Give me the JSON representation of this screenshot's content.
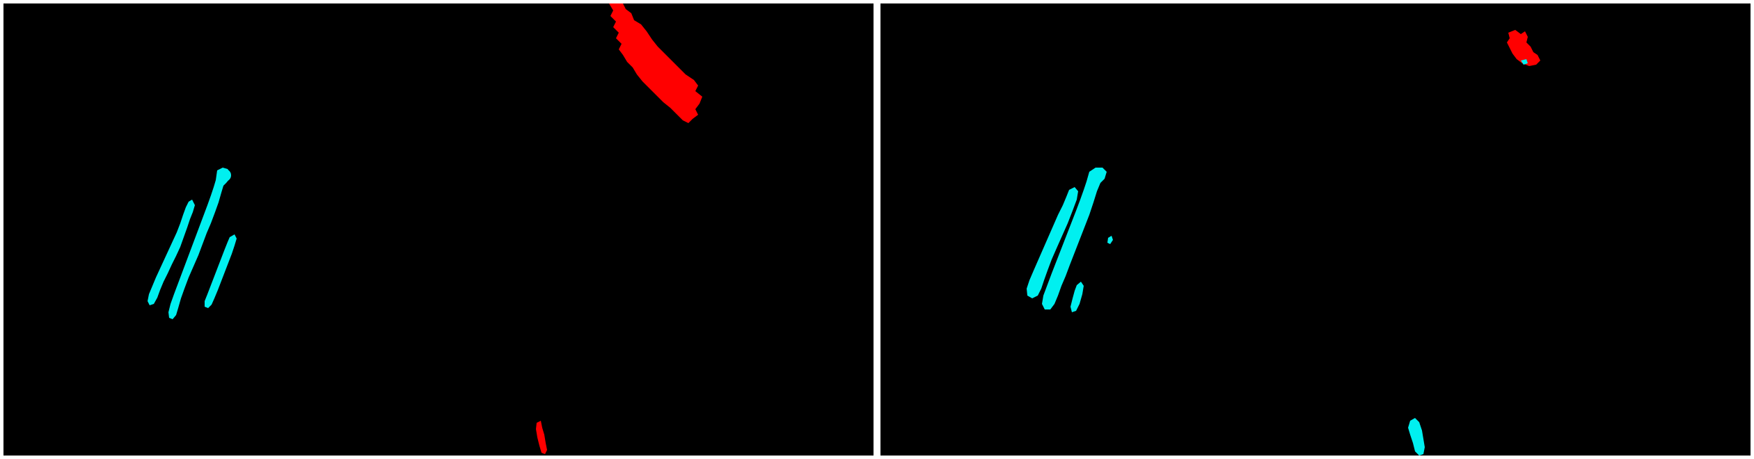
{
  "colors": {
    "background": "#000000",
    "separator": "#ffffff",
    "class_cyan": "#00f0f0",
    "class_red": "#ff0000"
  },
  "panels": [
    {
      "name": "left-segmentation-mask",
      "regions": [
        "cyan-streaks",
        "red-blob-top",
        "red-streak-bottom"
      ]
    },
    {
      "name": "right-segmentation-mask",
      "regions": [
        "cyan-streaks",
        "red-blob-top",
        "cyan-blob-bottom"
      ]
    }
  ]
}
